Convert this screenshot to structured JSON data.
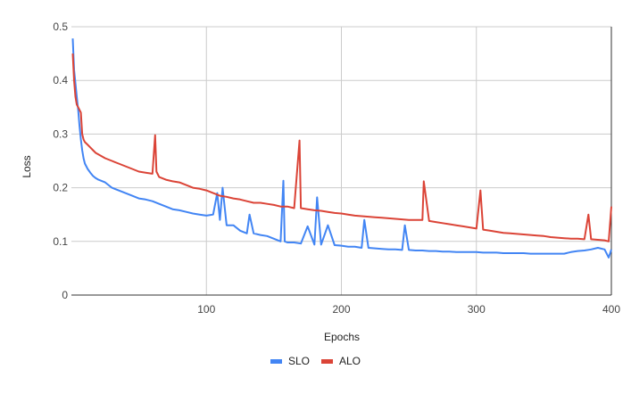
{
  "chart_data": {
    "type": "line",
    "title": "",
    "xlabel": "Epochs",
    "ylabel": "Loss",
    "xlim": [
      0,
      400
    ],
    "ylim": [
      0,
      0.5
    ],
    "x_ticks": [
      "100",
      "200",
      "300",
      "400"
    ],
    "y_ticks": [
      "0",
      "0.1",
      "0.2",
      "0.3",
      "0.4",
      "0.5"
    ],
    "grid": true,
    "legend_position": "bottom",
    "series": [
      {
        "name": "SLO",
        "color": "#4285f4",
        "x": [
          1,
          2,
          3,
          4,
          5,
          6,
          7,
          8,
          9,
          10,
          12,
          14,
          16,
          18,
          20,
          25,
          30,
          35,
          40,
          45,
          50,
          55,
          60,
          65,
          70,
          75,
          80,
          85,
          90,
          95,
          100,
          105,
          108,
          110,
          112,
          115,
          120,
          125,
          130,
          132,
          135,
          140,
          145,
          150,
          155,
          157,
          158,
          160,
          165,
          170,
          175,
          180,
          182,
          185,
          190,
          195,
          200,
          205,
          210,
          215,
          217,
          220,
          225,
          230,
          235,
          240,
          245,
          247,
          250,
          255,
          260,
          265,
          270,
          275,
          280,
          285,
          290,
          295,
          300,
          305,
          310,
          315,
          320,
          325,
          330,
          335,
          340,
          345,
          350,
          355,
          360,
          365,
          370,
          375,
          380,
          385,
          390,
          395,
          398,
          400
        ],
        "y": [
          0.478,
          0.42,
          0.395,
          0.37,
          0.345,
          0.315,
          0.29,
          0.27,
          0.255,
          0.245,
          0.235,
          0.228,
          0.222,
          0.218,
          0.215,
          0.21,
          0.2,
          0.195,
          0.19,
          0.185,
          0.18,
          0.178,
          0.175,
          0.17,
          0.165,
          0.16,
          0.158,
          0.155,
          0.152,
          0.15,
          0.148,
          0.15,
          0.19,
          0.14,
          0.2,
          0.13,
          0.13,
          0.12,
          0.115,
          0.15,
          0.115,
          0.112,
          0.11,
          0.105,
          0.1,
          0.213,
          0.1,
          0.098,
          0.098,
          0.096,
          0.128,
          0.094,
          0.182,
          0.094,
          0.13,
          0.093,
          0.092,
          0.09,
          0.09,
          0.088,
          0.14,
          0.088,
          0.087,
          0.086,
          0.085,
          0.085,
          0.084,
          0.13,
          0.084,
          0.083,
          0.083,
          0.082,
          0.082,
          0.081,
          0.081,
          0.08,
          0.08,
          0.08,
          0.08,
          0.079,
          0.079,
          0.079,
          0.078,
          0.078,
          0.078,
          0.078,
          0.077,
          0.077,
          0.077,
          0.077,
          0.077,
          0.077,
          0.08,
          0.082,
          0.083,
          0.085,
          0.088,
          0.085,
          0.07,
          0.085
        ]
      },
      {
        "name": "ALO",
        "color": "#db4437",
        "x": [
          1,
          2,
          3,
          4,
          5,
          6,
          7,
          8,
          9,
          10,
          12,
          14,
          16,
          18,
          20,
          25,
          30,
          35,
          40,
          45,
          50,
          55,
          60,
          62,
          63,
          65,
          70,
          75,
          80,
          85,
          90,
          95,
          100,
          105,
          110,
          115,
          120,
          125,
          130,
          135,
          140,
          145,
          150,
          155,
          160,
          165,
          169,
          170,
          175,
          180,
          185,
          190,
          195,
          200,
          205,
          210,
          215,
          220,
          225,
          230,
          235,
          240,
          245,
          250,
          255,
          260,
          261,
          265,
          270,
          275,
          280,
          285,
          290,
          295,
          300,
          303,
          305,
          310,
          315,
          320,
          325,
          330,
          335,
          340,
          345,
          350,
          355,
          360,
          365,
          370,
          375,
          380,
          383,
          385,
          390,
          395,
          398,
          400
        ],
        "y": [
          0.45,
          0.4,
          0.37,
          0.355,
          0.35,
          0.345,
          0.34,
          0.3,
          0.29,
          0.285,
          0.28,
          0.275,
          0.27,
          0.265,
          0.262,
          0.255,
          0.25,
          0.245,
          0.24,
          0.235,
          0.23,
          0.228,
          0.226,
          0.298,
          0.23,
          0.22,
          0.215,
          0.212,
          0.21,
          0.205,
          0.2,
          0.198,
          0.195,
          0.19,
          0.185,
          0.183,
          0.18,
          0.178,
          0.175,
          0.172,
          0.172,
          0.17,
          0.168,
          0.165,
          0.165,
          0.162,
          0.288,
          0.162,
          0.16,
          0.158,
          0.157,
          0.155,
          0.153,
          0.152,
          0.15,
          0.148,
          0.147,
          0.146,
          0.145,
          0.144,
          0.143,
          0.142,
          0.141,
          0.14,
          0.14,
          0.14,
          0.212,
          0.138,
          0.136,
          0.134,
          0.132,
          0.13,
          0.128,
          0.126,
          0.124,
          0.195,
          0.122,
          0.12,
          0.118,
          0.116,
          0.115,
          0.114,
          0.113,
          0.112,
          0.111,
          0.11,
          0.108,
          0.107,
          0.106,
          0.105,
          0.105,
          0.104,
          0.15,
          0.104,
          0.103,
          0.102,
          0.1,
          0.165
        ]
      }
    ]
  }
}
